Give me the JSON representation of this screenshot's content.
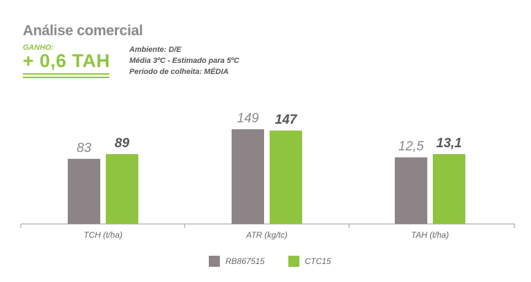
{
  "header": {
    "title": "Análise comercial",
    "gain_label": "GANHO:",
    "gain_value": "+ 0,6 TAH",
    "notes": [
      "Ambiente: D/E",
      "Média 3ºC - Estimado para 5ºC",
      "Período de colheita: MÉDIA"
    ]
  },
  "colors": {
    "accent": "#8fc440",
    "series_gray": "#8c8487",
    "series_green": "#8fc440"
  },
  "chart_data": {
    "type": "bar",
    "groups": [
      {
        "category": "TCH (t/ha)",
        "values": [
          83,
          89
        ],
        "labels": [
          "83",
          "89"
        ]
      },
      {
        "category": "ATR (kg/tc)",
        "values": [
          149,
          147
        ],
        "labels": [
          "149",
          "147"
        ]
      },
      {
        "category": "TAH (t/ha)",
        "values": [
          12.5,
          13.1
        ],
        "labels": [
          "12,5",
          "13,1"
        ]
      }
    ],
    "series": [
      {
        "name": "RB867515",
        "color": "#8c8487"
      },
      {
        "name": "CTC15",
        "color": "#8fc440"
      }
    ],
    "legend_position": "bottom-center",
    "grid": false
  }
}
